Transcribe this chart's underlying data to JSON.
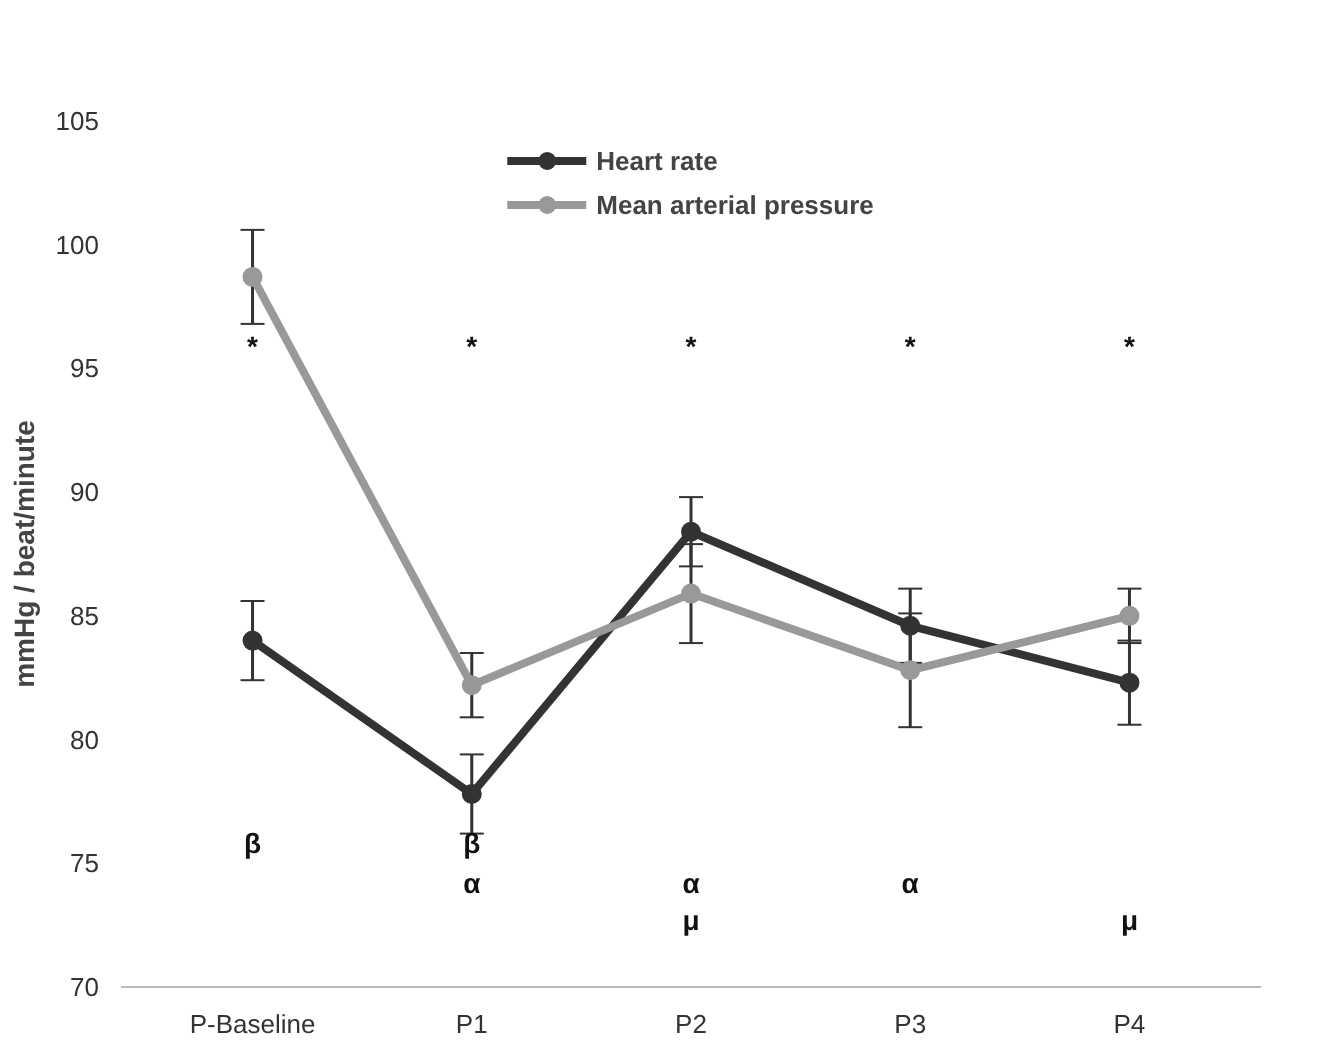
{
  "chart_data": {
    "type": "line",
    "ylabel": "mmHg / beat/minute",
    "categories": [
      "P-Baseline",
      "P1",
      "P2",
      "P3",
      "P4"
    ],
    "series": [
      {
        "name": "Heart rate",
        "color": "#333333",
        "values": [
          84.0,
          77.8,
          88.4,
          84.6,
          82.3
        ],
        "errors": [
          1.6,
          1.6,
          1.4,
          1.5,
          1.7
        ]
      },
      {
        "name": "Mean arterial pressure",
        "color": "#999999",
        "values": [
          98.7,
          82.2,
          85.9,
          82.8,
          85.0
        ],
        "errors": [
          1.9,
          1.3,
          2.0,
          2.3,
          1.1
        ]
      }
    ],
    "ylim": [
      70,
      105
    ],
    "yticks": [
      70,
      75,
      80,
      85,
      90,
      95,
      100,
      105
    ],
    "annotations": [
      "*",
      "*",
      "*",
      "*",
      "*",
      "β",
      "β",
      "α",
      "α",
      "α",
      "μ",
      "μ"
    ],
    "legend": "top",
    "marker": "circle",
    "line_style": "solid",
    "grid": false
  }
}
